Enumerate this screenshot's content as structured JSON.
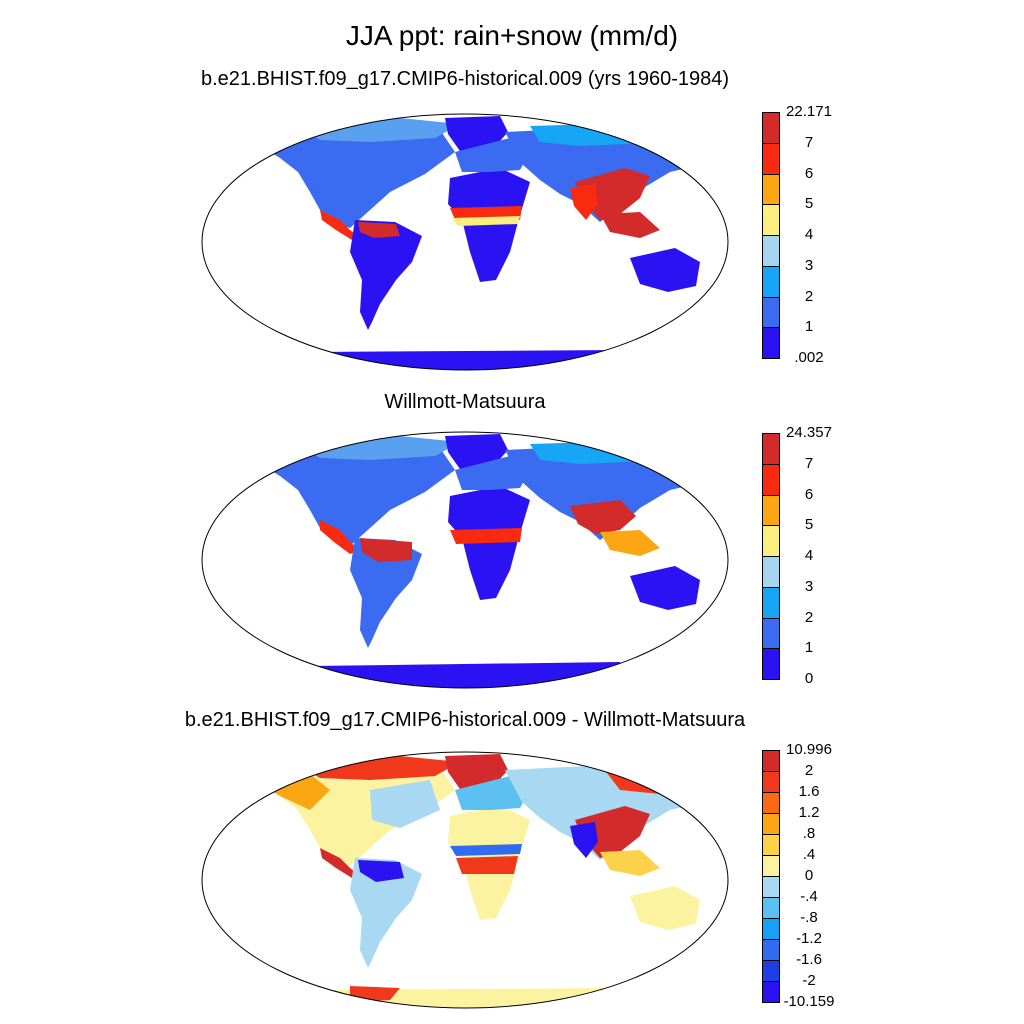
{
  "title": "JJA ppt: rain+snow (mm/d)",
  "panels": [
    {
      "title": "b.e21.BHIST.f09_g17.CMIP6-historical.009 (yrs 1960-1984)",
      "colorbar": {
        "labels": [
          ".002",
          "1",
          "2",
          "3",
          "4",
          "5",
          "6",
          "7",
          "22.171"
        ],
        "colors": [
          "#2b12f2",
          "#3b6bf0",
          "#16a6f5",
          "#a6d5f2",
          "#fbf07e",
          "#fca613",
          "#f82a10",
          "#d32a2b"
        ]
      }
    },
    {
      "title": "Willmott-Matsuura",
      "colorbar": {
        "labels": [
          "0",
          "1",
          "2",
          "3",
          "4",
          "5",
          "6",
          "7",
          "24.357"
        ],
        "colors": [
          "#2b12f2",
          "#3b6bf0",
          "#16a6f5",
          "#a6d5f2",
          "#fbf07e",
          "#fca613",
          "#f82a10",
          "#d32a2b"
        ]
      }
    },
    {
      "title": "b.e21.BHIST.f09_g17.CMIP6-historical.009 - Willmott-Matsuura",
      "colorbar": {
        "labels": [
          "-10.159",
          "-2",
          "-1.6",
          "-1.2",
          "-.8",
          "-.4",
          "0",
          ".4",
          ".8",
          "1.2",
          "1.6",
          "2",
          "10.996"
        ],
        "colors": [
          "#2b12f2",
          "#1f3fe6",
          "#2f6cf0",
          "#18a0f5",
          "#5cc0f0",
          "#a8d8f2",
          "#fbf3a0",
          "#fcd24a",
          "#fca613",
          "#fb6a12",
          "#f0381c",
          "#d32a2b"
        ]
      }
    }
  ]
}
